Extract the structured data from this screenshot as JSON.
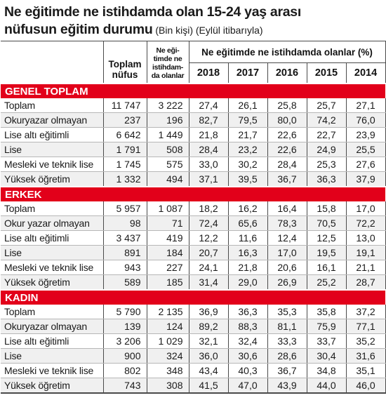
{
  "title": {
    "line1": "Ne eğitimde ne istihdamda olan 15-24 yaş arası",
    "line2_main": "nüfusun eğitim durumu",
    "line2_sub": " (Bin kişi) (Eylül itibarıyla)"
  },
  "headers": {
    "total": [
      "Toplam",
      "nüfus"
    ],
    "neet": [
      "Ne eği-",
      "timde ne",
      "istihdam-",
      "da olanlar"
    ],
    "group": "Ne eğitimde ne istihdamda olanlar (%)",
    "years": [
      "2018",
      "2017",
      "2016",
      "2015",
      "2014"
    ]
  },
  "sections": [
    {
      "name": "GENEL TOPLAM",
      "rows": [
        {
          "label": "Toplam",
          "total": "11 747",
          "neet": "3 222",
          "years": [
            "27,4",
            "26,1",
            "25,8",
            "25,7",
            "27,1"
          ]
        },
        {
          "label": "Okuryazar olmayan",
          "total": "237",
          "neet": "196",
          "years": [
            "82,7",
            "79,5",
            "80,0",
            "74,2",
            "76,0"
          ]
        },
        {
          "label": "Lise altı eğitimli",
          "total": "6 642",
          "neet": "1 449",
          "years": [
            "21,8",
            "21,7",
            "22,6",
            "22,7",
            "23,9"
          ]
        },
        {
          "label": "Lise",
          "total": "1 791",
          "neet": "508",
          "years": [
            "28,4",
            "23,2",
            "22,6",
            "24,9",
            "25,5"
          ]
        },
        {
          "label": "Mesleki ve teknik lise",
          "total": "1 745",
          "neet": "575",
          "years": [
            "33,0",
            "30,2",
            "28,4",
            "25,3",
            "27,6"
          ]
        },
        {
          "label": "Yüksek öğretim",
          "total": "1 332",
          "neet": "494",
          "years": [
            "37,1",
            "39,5",
            "36,7",
            "36,3",
            "37,9"
          ]
        }
      ]
    },
    {
      "name": "ERKEK",
      "rows": [
        {
          "label": "Toplam",
          "total": "5 957",
          "neet": "1 087",
          "years": [
            "18,2",
            "16,2",
            "16,4",
            "15,8",
            "17,0"
          ]
        },
        {
          "label": "Okur yazar olmayan",
          "total": "98",
          "neet": "71",
          "years": [
            "72,4",
            "65,6",
            "78,3",
            "70,5",
            "72,2"
          ]
        },
        {
          "label": "Lise altı eğitimli",
          "total": "3 437",
          "neet": "419",
          "years": [
            "12,2",
            "11,6",
            "12,4",
            "12,5",
            "13,0"
          ]
        },
        {
          "label": "Lise",
          "total": "891",
          "neet": "184",
          "years": [
            "20,7",
            "16,3",
            "17,0",
            "19,5",
            "19,1"
          ]
        },
        {
          "label": "Mesleki ve teknik lise",
          "total": "943",
          "neet": "227",
          "years": [
            "24,1",
            "21,8",
            "20,6",
            "16,1",
            "21,1"
          ]
        },
        {
          "label": "Yüksek öğretim",
          "total": "589",
          "neet": "185",
          "years": [
            "31,4",
            "29,0",
            "26,9",
            "25,2",
            "28,7"
          ]
        }
      ]
    },
    {
      "name": "KADIN",
      "rows": [
        {
          "label": "Toplam",
          "total": "5 790",
          "neet": "2 135",
          "years": [
            "36,9",
            "36,3",
            "35,3",
            "35,8",
            "37,2"
          ]
        },
        {
          "label": "Okuryazar olmayan",
          "total": "139",
          "neet": "124",
          "years": [
            "89,2",
            "88,3",
            "81,1",
            "75,9",
            "77,1"
          ]
        },
        {
          "label": "Lise altı eğitimli",
          "total": "3 206",
          "neet": "1 029",
          "years": [
            "32,1",
            "32,4",
            "33,3",
            "33,7",
            "35,2"
          ]
        },
        {
          "label": "Lise",
          "total": "900",
          "neet": "324",
          "years": [
            "36,0",
            "30,6",
            "28,6",
            "30,4",
            "31,6"
          ]
        },
        {
          "label": "Mesleki ve teknik lise",
          "total": "802",
          "neet": "348",
          "years": [
            "43,4",
            "40,3",
            "36,7",
            "34,8",
            "35,1"
          ]
        },
        {
          "label": "Yüksek öğretim",
          "total": "743",
          "neet": "308",
          "years": [
            "41,5",
            "47,0",
            "43,9",
            "44,0",
            "46,0"
          ]
        }
      ]
    }
  ]
}
